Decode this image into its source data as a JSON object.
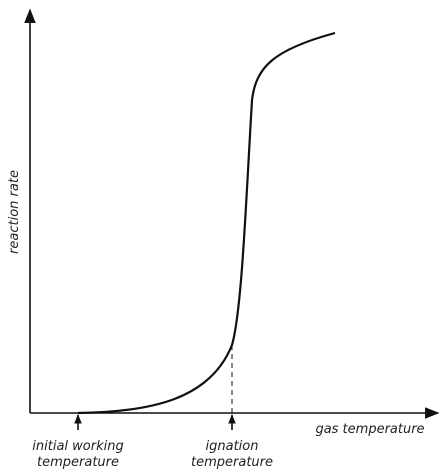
{
  "axes": {
    "y_label": "reaction rate",
    "x_label": "gas temperature"
  },
  "markers": [
    {
      "lines": [
        "initial working",
        "temperature"
      ]
    },
    {
      "lines": [
        "ignation",
        "temperature"
      ]
    }
  ]
}
